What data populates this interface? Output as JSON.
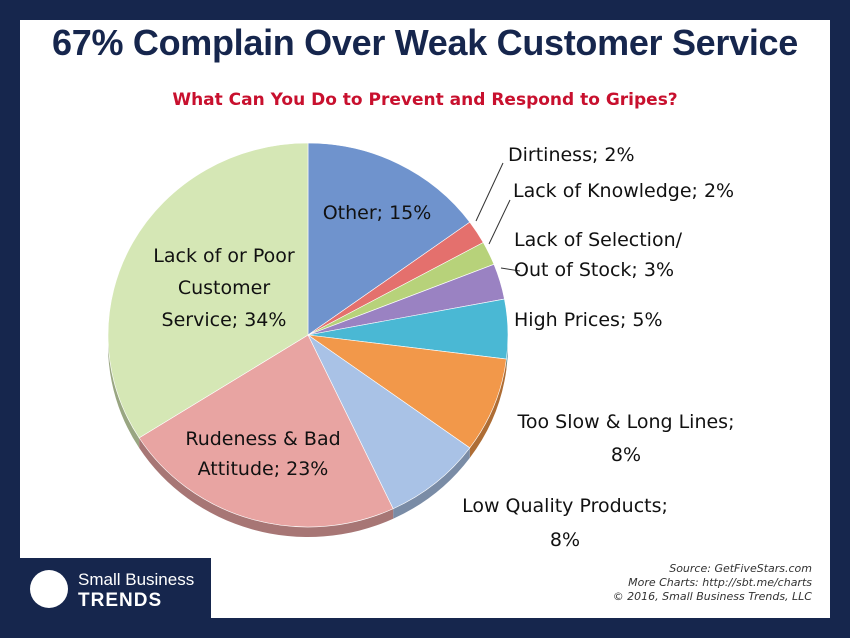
{
  "title": "67% Complain Over Weak Customer Service",
  "subtitle": "What Can You Do to Prevent and Respond to Gripes?",
  "chart_data": {
    "type": "pie",
    "start_angle_deg": 0,
    "direction": "clockwise",
    "slices": [
      {
        "name": "Other",
        "value": 15,
        "color": "#6f93cd",
        "label_lines": [
          "Other; 15%"
        ]
      },
      {
        "name": "Dirtiness",
        "value": 2,
        "color": "#e4706d",
        "label_lines": [
          "Dirtiness; 2%"
        ]
      },
      {
        "name": "Lack of Knowledge",
        "value": 2,
        "color": "#b7d27a",
        "label_lines": [
          "Lack of Knowledge; 2%"
        ]
      },
      {
        "name": "Lack of Selection/ Out of Stock",
        "value": 3,
        "color": "#9a82c2",
        "label_lines": [
          "Lack of Selection/",
          "Out of Stock; 3%"
        ]
      },
      {
        "name": "High Prices",
        "value": 5,
        "color": "#4ab8d4",
        "label_lines": [
          "High Prices; 5%"
        ]
      },
      {
        "name": "Too Slow & Long Lines",
        "value": 8,
        "color": "#f2984a",
        "label_lines": [
          "Too Slow & Long Lines;",
          "8%"
        ]
      },
      {
        "name": "Low Quality Products",
        "value": 8,
        "color": "#a9c2e6",
        "label_lines": [
          "Low Quality Products;",
          "8%"
        ]
      },
      {
        "name": "Rudeness & Bad Attitude",
        "value": 23,
        "color": "#e8a4a2",
        "label_lines": [
          "Rudeness & Bad",
          "Attitude; 23%"
        ]
      },
      {
        "name": "Lack of or Poor Customer Service",
        "value": 34,
        "color": "#d5e7b5",
        "label_lines": [
          "Lack of or Poor",
          "Customer",
          "Service; 34%"
        ]
      }
    ]
  },
  "logo": {
    "line1": "Small Business",
    "line2": "TRENDS"
  },
  "source": {
    "line1": "Source: GetFiveStars.com",
    "line2": "More Charts: http://sbt.me/charts",
    "line3": "© 2016, Small Business Trends, LLC"
  }
}
